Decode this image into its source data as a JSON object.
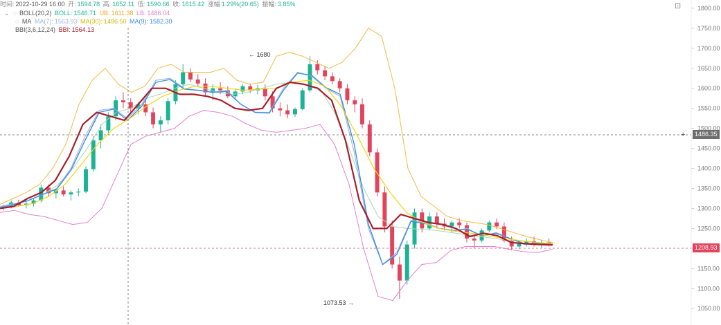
{
  "header": {
    "time_label": "时间:",
    "time": "2022-10-29 16:00",
    "open_label": "开:",
    "open": "1594.78",
    "high_label": "高:",
    "high": "1652.11",
    "low_label": "低:",
    "low": "1590.66",
    "close_label": "收:",
    "close": "1615.42",
    "chg_label": "涨幅",
    "chg": "1.29%(20.65)",
    "amp_label": "振幅:",
    "amp": "3.85%"
  },
  "indicators": {
    "boll": {
      "name": "BOLL(20,2)",
      "mid_label": "BOLL:",
      "mid": "1546.71",
      "ub_label": "UB:",
      "ub": "1611.38",
      "lb_label": "LB:",
      "lb": "1486.04"
    },
    "ma": {
      "name": "MA",
      "ma7_label": "MA(7):",
      "ma7": "1563.93",
      "ma30_label": "MA(30):",
      "ma30": "1496.50",
      "ma9_label": "MA(9):",
      "ma9": "1582.30"
    },
    "bbi": {
      "name": "BBI(3,6,12,24)",
      "bbi_label": "BBI:",
      "bbi": "1564.13"
    }
  },
  "tags": {
    "crosshair_price": "1486.35",
    "last_price": "1208.93",
    "high_mark": "1680",
    "low_mark": "1073.53"
  },
  "colors": {
    "up": "#1bb394",
    "down": "#e2445c",
    "boll_mid": "#a8d8b0",
    "ub": "#f5b942",
    "lb": "#e37fcf",
    "ma7": "#a0b8e0",
    "ma30": "#f2d50f",
    "ma9": "#3f8fe0",
    "bbi": "#a91d2a"
  },
  "chart_data": {
    "type": "candlestick",
    "yticks": [
      "1050.00",
      "1100.00",
      "1150.00",
      "1200.00",
      "1250.00",
      "1300.00",
      "1350.00",
      "1400.00",
      "1450.00",
      "1500.00",
      "1550.00",
      "1600.00",
      "1650.00",
      "1700.00",
      "1750.00",
      "1800.00"
    ],
    "ylim": [
      1040,
      1805
    ],
    "grid": false,
    "candles": [
      [
        1302,
        1310,
        1295,
        1305
      ],
      [
        1305,
        1320,
        1300,
        1315
      ],
      [
        1315,
        1322,
        1305,
        1308
      ],
      [
        1308,
        1318,
        1300,
        1312
      ],
      [
        1312,
        1325,
        1305,
        1320
      ],
      [
        1320,
        1360,
        1315,
        1352
      ],
      [
        1352,
        1360,
        1330,
        1338
      ],
      [
        1338,
        1350,
        1325,
        1345
      ],
      [
        1345,
        1355,
        1330,
        1335
      ],
      [
        1335,
        1345,
        1320,
        1340
      ],
      [
        1340,
        1350,
        1330,
        1342
      ],
      [
        1342,
        1405,
        1338,
        1398
      ],
      [
        1398,
        1480,
        1392,
        1470
      ],
      [
        1470,
        1510,
        1450,
        1495
      ],
      [
        1495,
        1540,
        1485,
        1530
      ],
      [
        1530,
        1580,
        1520,
        1570
      ],
      [
        1570,
        1590,
        1550,
        1565
      ],
      [
        1565,
        1575,
        1540,
        1550
      ],
      [
        1550,
        1565,
        1535,
        1560
      ],
      [
        1560,
        1570,
        1530,
        1540
      ],
      [
        1540,
        1552,
        1500,
        1510
      ],
      [
        1510,
        1530,
        1490,
        1520
      ],
      [
        1520,
        1575,
        1510,
        1568
      ],
      [
        1568,
        1620,
        1560,
        1610
      ],
      [
        1610,
        1660,
        1600,
        1640
      ],
      [
        1640,
        1650,
        1615,
        1622
      ],
      [
        1622,
        1635,
        1605,
        1612
      ],
      [
        1612,
        1625,
        1580,
        1590
      ],
      [
        1590,
        1610,
        1570,
        1600
      ],
      [
        1600,
        1615,
        1585,
        1595
      ],
      [
        1595,
        1605,
        1575,
        1580
      ],
      [
        1580,
        1600,
        1570,
        1592
      ],
      [
        1592,
        1610,
        1585,
        1605
      ],
      [
        1605,
        1612,
        1588,
        1595
      ],
      [
        1595,
        1608,
        1585,
        1600
      ],
      [
        1600,
        1610,
        1570,
        1580
      ],
      [
        1580,
        1592,
        1540,
        1550
      ],
      [
        1550,
        1565,
        1530,
        1545
      ],
      [
        1545,
        1560,
        1525,
        1535
      ],
      [
        1535,
        1552,
        1528,
        1548
      ],
      [
        1548,
        1600,
        1545,
        1595
      ],
      [
        1595,
        1680,
        1590,
        1660
      ],
      [
        1660,
        1670,
        1635,
        1645
      ],
      [
        1645,
        1655,
        1620,
        1630
      ],
      [
        1630,
        1640,
        1610,
        1618
      ],
      [
        1618,
        1625,
        1590,
        1600
      ],
      [
        1600,
        1610,
        1560,
        1570
      ],
      [
        1570,
        1580,
        1540,
        1560
      ],
      [
        1560,
        1575,
        1500,
        1510
      ],
      [
        1510,
        1520,
        1430,
        1440
      ],
      [
        1440,
        1450,
        1330,
        1340
      ],
      [
        1340,
        1355,
        1240,
        1255
      ],
      [
        1255,
        1270,
        1150,
        1160
      ],
      [
        1160,
        1180,
        1074,
        1120
      ],
      [
        1120,
        1220,
        1110,
        1210
      ],
      [
        1210,
        1300,
        1200,
        1290
      ],
      [
        1290,
        1300,
        1240,
        1250
      ],
      [
        1250,
        1290,
        1245,
        1280
      ],
      [
        1280,
        1290,
        1250,
        1262
      ],
      [
        1262,
        1275,
        1245,
        1255
      ],
      [
        1255,
        1270,
        1240,
        1265
      ],
      [
        1265,
        1275,
        1250,
        1258
      ],
      [
        1258,
        1265,
        1215,
        1225
      ],
      [
        1225,
        1240,
        1200,
        1220
      ],
      [
        1220,
        1250,
        1215,
        1245
      ],
      [
        1245,
        1270,
        1240,
        1265
      ],
      [
        1265,
        1275,
        1248,
        1255
      ],
      [
        1255,
        1265,
        1215,
        1220
      ],
      [
        1220,
        1230,
        1195,
        1205
      ],
      [
        1205,
        1218,
        1198,
        1212
      ],
      [
        1212,
        1225,
        1205,
        1218
      ],
      [
        1218,
        1230,
        1205,
        1210
      ],
      [
        1210,
        1222,
        1202,
        1215
      ],
      [
        1215,
        1225,
        1205,
        1208
      ]
    ],
    "series": [
      {
        "key": "ub",
        "values": [
          1310,
          1325,
          1340,
          1360,
          1400,
          1460,
          1560,
          1620,
          1650,
          1610,
          1590,
          1605,
          1650,
          1660,
          1640,
          1640,
          1640,
          1650,
          1620,
          1610,
          1615,
          1680,
          1690,
          1680,
          1665,
          1650,
          1665,
          1700,
          1750,
          1730,
          1600,
          1400,
          1330,
          1305,
          1280,
          1270,
          1265,
          1260,
          1250,
          1240,
          1230,
          1222,
          1215
        ]
      },
      {
        "key": "boll_mid",
        "values": [
          1300,
          1310,
          1320,
          1335,
          1360,
          1400,
          1450,
          1510,
          1540,
          1550,
          1575,
          1585,
          1600,
          1610,
          1600,
          1590,
          1585,
          1590,
          1600,
          1610,
          1615,
          1610,
          1600,
          1540,
          1450,
          1350,
          1280,
          1255,
          1250,
          1248,
          1245,
          1240,
          1235,
          1230,
          1225,
          1220,
          1218,
          1215,
          1212
        ]
      },
      {
        "key": "lb",
        "values": [
          1290,
          1295,
          1285,
          1280,
          1270,
          1260,
          1265,
          1300,
          1380,
          1460,
          1480,
          1490,
          1500,
          1530,
          1545,
          1540,
          1530,
          1510,
          1495,
          1490,
          1495,
          1500,
          1510,
          1460,
          1360,
          1200,
          1080,
          1070,
          1120,
          1160,
          1165,
          1195,
          1205,
          1205,
          1205,
          1198,
          1192,
          1190,
          1198
        ]
      },
      {
        "key": "ma7",
        "values": [
          1305,
          1312,
          1320,
          1335,
          1350,
          1400,
          1480,
          1545,
          1550,
          1525,
          1560,
          1620,
          1625,
          1600,
          1595,
          1590,
          1595,
          1560,
          1540,
          1540,
          1600,
          1640,
          1630,
          1600,
          1580,
          1440,
          1250,
          1160,
          1190,
          1270,
          1265,
          1250,
          1245,
          1250,
          1230,
          1240,
          1225,
          1210,
          1212,
          1210
        ]
      },
      {
        "key": "ma9",
        "values": [
          1302,
          1310,
          1320,
          1335,
          1348,
          1395,
          1470,
          1540,
          1548,
          1520,
          1555,
          1615,
          1622,
          1598,
          1595,
          1590,
          1592,
          1560,
          1540,
          1538,
          1595,
          1638,
          1632,
          1602,
          1585,
          1460,
          1260,
          1160,
          1185,
          1268,
          1262,
          1250,
          1245,
          1248,
          1232,
          1238,
          1225,
          1212,
          1213,
          1210
        ]
      },
      {
        "key": "ma30",
        "values": [
          1300,
          1305,
          1312,
          1330,
          1360,
          1410,
          1460,
          1500,
          1525,
          1555,
          1580,
          1595,
          1605,
          1605,
          1600,
          1595,
          1598,
          1600,
          1615,
          1620,
          1605,
          1555,
          1480,
          1400,
          1340,
          1290,
          1265,
          1250,
          1243,
          1238,
          1232,
          1225,
          1220,
          1215,
          1212
        ]
      },
      {
        "key": "bbi",
        "values": [
          1300,
          1305,
          1325,
          1340,
          1370,
          1430,
          1510,
          1540,
          1530,
          1520,
          1560,
          1600,
          1600,
          1585,
          1585,
          1580,
          1570,
          1550,
          1545,
          1550,
          1600,
          1615,
          1610,
          1600,
          1570,
          1470,
          1320,
          1250,
          1250,
          1285,
          1275,
          1265,
          1260,
          1250,
          1230,
          1238,
          1232,
          1215,
          1212,
          1210,
          1209
        ]
      }
    ]
  }
}
